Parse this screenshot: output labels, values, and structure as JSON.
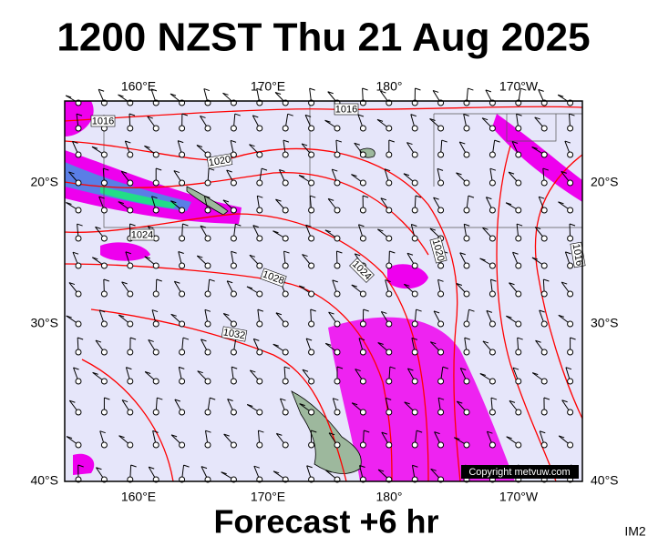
{
  "header": {
    "title": "1200 NZST Thu 21 Aug 2025"
  },
  "map": {
    "top_labels": [
      "160°E",
      "170°E",
      "180°",
      "170°W"
    ],
    "bottom_labels": [
      "160°E",
      "170°E",
      "180°",
      "170°W"
    ],
    "left_labels": [
      "20°S",
      "30°S",
      "40°S"
    ],
    "right_labels": [
      "20°S",
      "30°S",
      "40°S"
    ],
    "isobar_labels": [
      "1016",
      "1016",
      "1020",
      "1024",
      "1028",
      "1032",
      "1024",
      "1020",
      "1016"
    ],
    "copyright": "Copyright metvuw.com"
  },
  "footer": {
    "forecast": "Forecast +6 hr",
    "code": "IM2"
  }
}
